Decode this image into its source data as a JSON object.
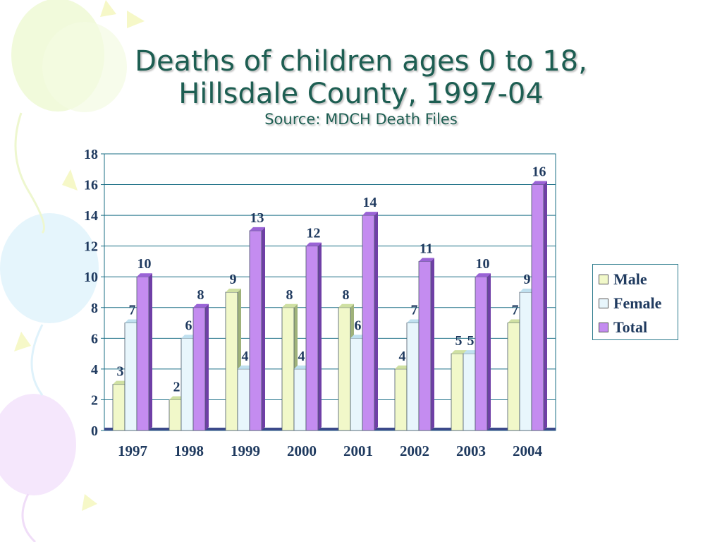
{
  "slide": {
    "title_line1": "Deaths of children ages 0 to 18,",
    "title_line2": "Hillsdale County, 1997-04",
    "subtitle": "Source: MDCH Death Files"
  },
  "colors": {
    "title": "#1d5e52",
    "axis_text": "#1f3a5f",
    "grid": "#1b6f86",
    "male": "#f1f8c9",
    "female": "#e8f6fc",
    "total": "#c48cf0"
  },
  "chart_data": {
    "type": "bar",
    "title": "",
    "xlabel": "",
    "ylabel": "",
    "categories": [
      "1997",
      "1998",
      "1999",
      "2000",
      "2001",
      "2002",
      "2003",
      "2004"
    ],
    "ylim": [
      0,
      18
    ],
    "yticks": [
      "0",
      "2",
      "4",
      "6",
      "8",
      "10",
      "12",
      "14",
      "16",
      "18"
    ],
    "grid": true,
    "legend_position": "right",
    "series": [
      {
        "name": "Male",
        "values": [
          3,
          2,
          9,
          8,
          8,
          4,
          5,
          7
        ]
      },
      {
        "name": "Female",
        "values": [
          7,
          6,
          4,
          4,
          6,
          7,
          5,
          9
        ]
      },
      {
        "name": "Total",
        "values": [
          10,
          8,
          13,
          12,
          14,
          11,
          10,
          16
        ]
      }
    ]
  }
}
